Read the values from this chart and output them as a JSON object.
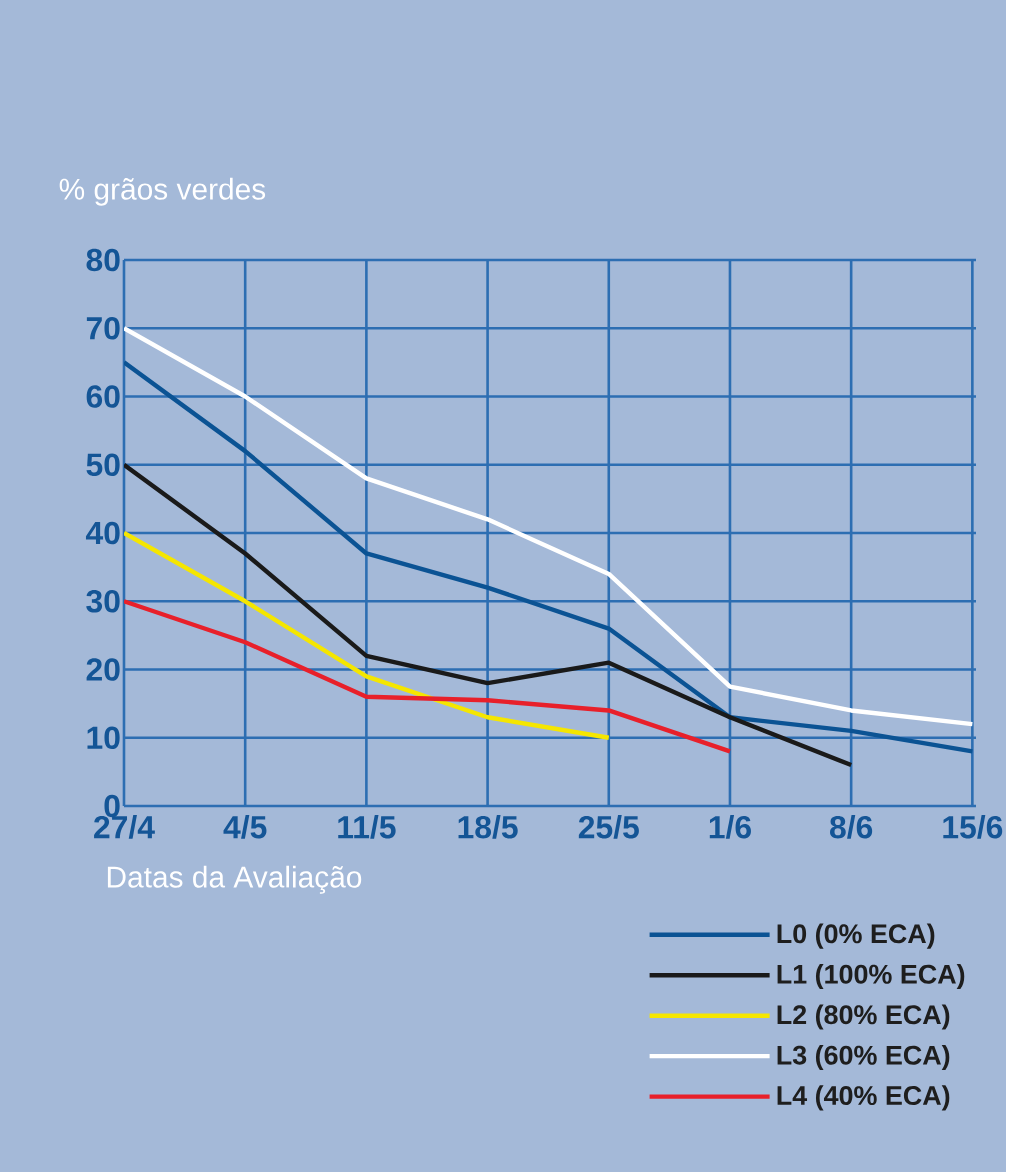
{
  "chart_data": {
    "type": "line",
    "ylabel": "% grãos verdes",
    "xlabel": "Datas da Avaliação",
    "categories": [
      "27/4",
      "4/5",
      "11/5",
      "18/5",
      "25/5",
      "1/6",
      "8/6",
      "15/6"
    ],
    "series": [
      {
        "name": "L0 (0% ECA)",
        "color": "#0b5394",
        "values": [
          65,
          52,
          37,
          32,
          26,
          13,
          11,
          8
        ]
      },
      {
        "name": "L1 (100% ECA)",
        "color": "#1a1a1a",
        "values": [
          50,
          37,
          22,
          18,
          21,
          13,
          6,
          null
        ]
      },
      {
        "name": "L2 (80% ECA)",
        "color": "#f5e600",
        "values": [
          40,
          30,
          19,
          13,
          10,
          null,
          null,
          null
        ]
      },
      {
        "name": "L3 (60% ECA)",
        "color": "#ffffff",
        "values": [
          70,
          60,
          48,
          42,
          34,
          17.5,
          14,
          12
        ]
      },
      {
        "name": "L4 (40% ECA)",
        "color": "#e8202a",
        "values": [
          30,
          24,
          16,
          15.5,
          14,
          8,
          null,
          null
        ]
      }
    ],
    "ylim": [
      0,
      80
    ],
    "yticks": [
      0,
      10,
      20,
      30,
      40,
      50,
      60,
      70,
      80
    ],
    "grid": true,
    "legend": "bottom right",
    "marker": "none",
    "line_style": "solid"
  }
}
